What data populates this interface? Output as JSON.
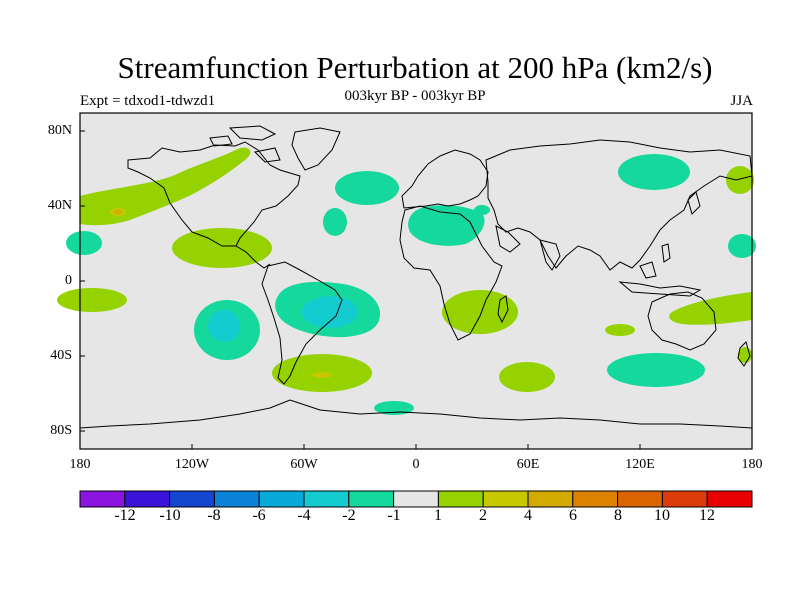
{
  "title": "Streamfunction Perturbation at 200 hPa (km2/s)",
  "left_string": "Expt = tdxod1-tdwzd1",
  "center_string": "003kyr BP - 003kyr BP",
  "right_string": "JJA",
  "y_ticks": [
    "80N",
    "40N",
    "0",
    "40S",
    "80S"
  ],
  "x_ticks": [
    "180",
    "120W",
    "60W",
    "0",
    "60E",
    "120E",
    "180"
  ],
  "colorbar": {
    "colors": [
      "#8b14e0",
      "#3a14d8",
      "#1446d0",
      "#0a82d8",
      "#0aaad8",
      "#14ccd0",
      "#14d89c",
      "#e6e6e6",
      "#96d200",
      "#c8c800",
      "#d2aa00",
      "#dc8200",
      "#dc6400",
      "#dc3c0a",
      "#e60000"
    ],
    "labels": [
      "-12",
      "-10",
      "-8",
      "-6",
      "-4",
      "-2",
      "-1",
      "1",
      "2",
      "4",
      "6",
      "8",
      "10",
      "12"
    ]
  },
  "map_colors": {
    "background": "#e6e6e6",
    "neg_weak": "#14d89c",
    "neg_mid": "#14ccd0",
    "pos_weak": "#96d200",
    "pos_mid": "#c8c800",
    "pos_strong": "#d2aa00"
  }
}
